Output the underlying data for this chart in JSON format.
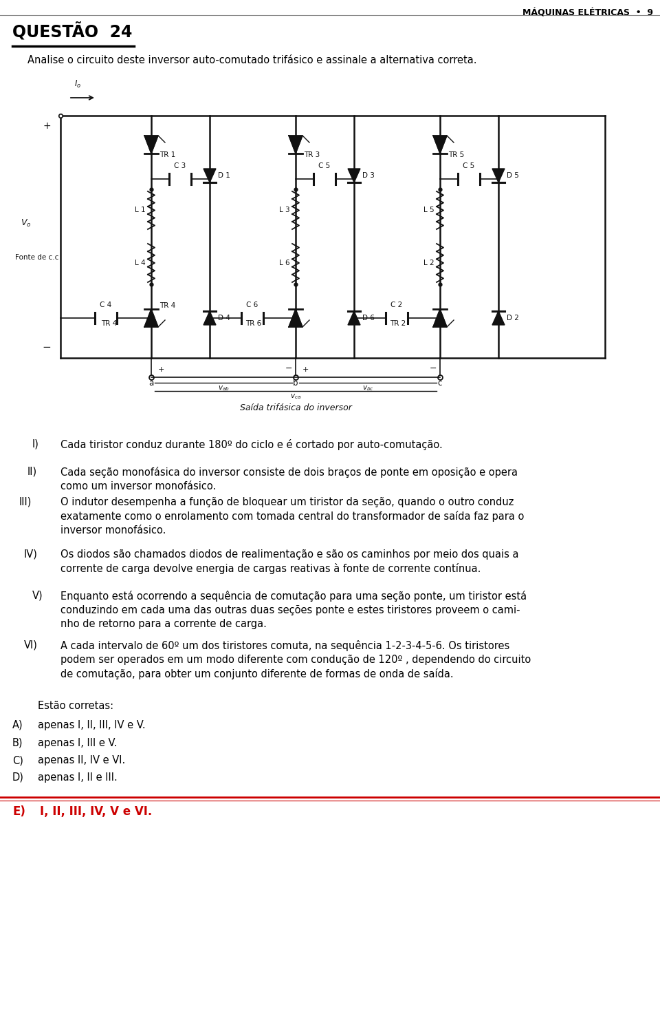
{
  "header_right": "MÁQUINAS ELÉTRICAS  •  9",
  "title": "QUESTÃO  24",
  "subtitle": "Analise o circuito deste inversor auto-comutado trifásico e assinale a alternativa correta.",
  "items": [
    {
      "label": "I)",
      "text": "Cada tiristor conduz durante 180º do ciclo e é cortado por auto-comutação."
    },
    {
      "label": "II)",
      "text": "Cada seção monofásica do inversor consiste de dois braços de ponte em oposição e opera\ncomo um inversor monofásico."
    },
    {
      "label": "III)",
      "text": "O indutor desempenha a função de bloquear um tiristor da seção, quando o outro conduz\nexatamente como o enrolamento com tomada central do transformador de saída faz para o\ninversor monofásico."
    },
    {
      "label": "IV)",
      "text": "Os diodos são chamados diodos de realimentação e são os caminhos por meio dos quais a\ncorrente de carga devolve energia de cargas reativas à fonte de corrente contínua."
    },
    {
      "label": "V)",
      "text": "Enquanto está ocorrendo a sequência de comutação para uma seção ponte, um tiristor está\nconduzindo em cada uma das outras duas seções ponte e estes tiristores proveem o cami-\nnho de retorno para a corrente de carga."
    },
    {
      "label": "VI)",
      "text": "A cada intervalo de 60º um dos tiristores comuta, na sequência 1-2-3-4-5-6. Os tiristores\npodem ser operados em um modo diferente com condução de 120º , dependendo do circuito\nde comutação, para obter um conjunto diferente de formas de onda de saída."
    }
  ],
  "estao_corretas": "Estão corretas:",
  "options": [
    {
      "label": "A)",
      "text": "apenas I, II, III, IV e V."
    },
    {
      "label": "B)",
      "text": "apenas I, III e V."
    },
    {
      "label": "C)",
      "text": "apenas II, IV e VI."
    },
    {
      "label": "D)",
      "text": "apenas I, II e III."
    }
  ],
  "answer_label": "E)",
  "answer_text": "I, II, III, IV, V e VI.",
  "background_color": "#ffffff",
  "text_color": "#000000",
  "answer_color": "#cc0000",
  "answer_line_color": "#cc0000",
  "fig_width": 9.6,
  "fig_height": 14.89,
  "dpi": 100
}
